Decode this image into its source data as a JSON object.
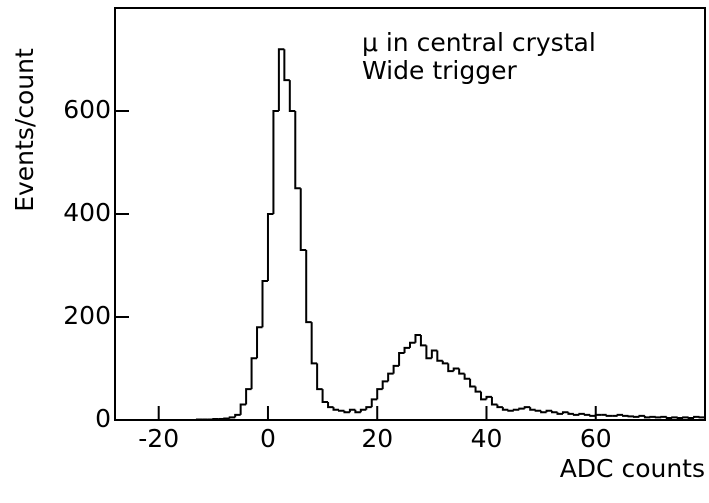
{
  "chart_data": {
    "type": "histogram",
    "annotations": [
      "μ in central crystal",
      "Wide trigger"
    ],
    "x_label": "ADC counts",
    "y_label": "Events/count",
    "bins": [
      -28,
      -27,
      -26,
      -25,
      -24,
      -23,
      -22,
      -21,
      -20,
      -19,
      -18,
      -17,
      -16,
      -15,
      -14,
      -13,
      -12,
      -11,
      -10,
      -9,
      -8,
      -7,
      -6,
      -5,
      -4,
      -3,
      -2,
      -1,
      0,
      1,
      2,
      3,
      4,
      5,
      6,
      7,
      8,
      9,
      10,
      11,
      12,
      13,
      14,
      15,
      16,
      17,
      18,
      19,
      20,
      21,
      22,
      23,
      24,
      25,
      26,
      27,
      28,
      29,
      30,
      31,
      32,
      33,
      34,
      35,
      36,
      37,
      38,
      39,
      40,
      41,
      42,
      43,
      44,
      45,
      46,
      47,
      48,
      49,
      50,
      51,
      52,
      53,
      54,
      55,
      56,
      57,
      58,
      59,
      60,
      61,
      62,
      63,
      64,
      65,
      66,
      67,
      68,
      69,
      70,
      71,
      72,
      73,
      74,
      75,
      76,
      77,
      78,
      79,
      80
    ],
    "counts": [
      0,
      0,
      0,
      0,
      0,
      0,
      0,
      0,
      0,
      0,
      0,
      0,
      0,
      0,
      0,
      1,
      1,
      1,
      2,
      2,
      3,
      5,
      10,
      30,
      60,
      120,
      180,
      270,
      400,
      600,
      720,
      660,
      600,
      450,
      330,
      190,
      110,
      60,
      35,
      25,
      20,
      18,
      15,
      20,
      15,
      20,
      25,
      40,
      60,
      75,
      90,
      105,
      130,
      140,
      150,
      165,
      145,
      120,
      135,
      115,
      110,
      95,
      100,
      90,
      80,
      65,
      55,
      40,
      45,
      30,
      25,
      20,
      18,
      20,
      22,
      25,
      20,
      18,
      15,
      18,
      15,
      12,
      15,
      12,
      10,
      12,
      10,
      8,
      10,
      10,
      8,
      8,
      10,
      8,
      7,
      6,
      8,
      5,
      6,
      5,
      6,
      4,
      5,
      4,
      5,
      4,
      6,
      5
    ],
    "color": "#000000",
    "xlim": [
      -28,
      80
    ],
    "xticks": [
      -20,
      0,
      20,
      40,
      60
    ],
    "ylim": [
      0,
      800
    ],
    "yticks": [
      0,
      200,
      400,
      600
    ]
  }
}
